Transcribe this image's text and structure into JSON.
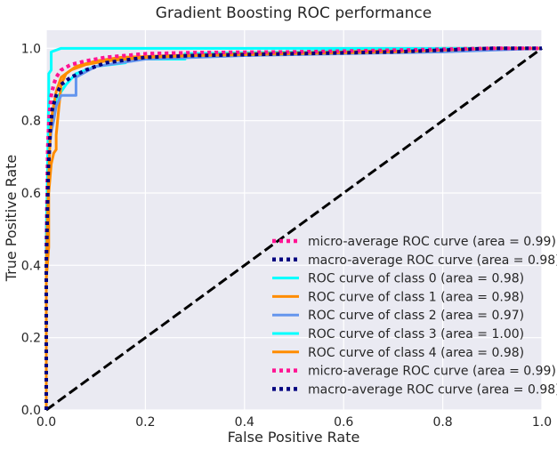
{
  "chart_data": {
    "type": "line",
    "title": "Gradient Boosting ROC performance",
    "xlabel": "False Positive Rate",
    "ylabel": "True Positive Rate",
    "xlim": [
      0.0,
      1.0
    ],
    "ylim": [
      0.0,
      1.05
    ],
    "xticks": [
      "0.0",
      "0.2",
      "0.4",
      "0.6",
      "0.8",
      "1.0"
    ],
    "yticks": [
      "0.0",
      "0.2",
      "0.4",
      "0.6",
      "0.8",
      "1.0"
    ],
    "grid": true,
    "legend_position": "lower-right",
    "background": "#eaeaf2",
    "series": [
      {
        "name": "micro-average ROC curve (area = 0.99)",
        "color": "#ff1493",
        "style": "dotted",
        "x": [
          0,
          0,
          0.003,
          0.006,
          0.01,
          0.015,
          0.02,
          0.03,
          0.05,
          0.08,
          0.12,
          0.2,
          0.3,
          0.5,
          0.7,
          0.9,
          1.0
        ],
        "y": [
          0,
          0.42,
          0.72,
          0.82,
          0.87,
          0.9,
          0.92,
          0.94,
          0.955,
          0.965,
          0.975,
          0.985,
          0.988,
          0.99,
          0.995,
          1.0,
          1.0
        ]
      },
      {
        "name": "macro-average ROC curve (area = 0.98)",
        "color": "#000080",
        "style": "dotted",
        "x": [
          0,
          0,
          0.004,
          0.008,
          0.012,
          0.02,
          0.03,
          0.05,
          0.08,
          0.12,
          0.2,
          0.3,
          0.5,
          0.7,
          0.9,
          1.0
        ],
        "y": [
          0,
          0.4,
          0.66,
          0.77,
          0.83,
          0.87,
          0.9,
          0.92,
          0.94,
          0.96,
          0.975,
          0.98,
          0.985,
          0.99,
          1.0,
          1.0
        ]
      },
      {
        "name": "ROC curve of class 0 (area = 0.98)",
        "color": "#00ffff",
        "style": "solid",
        "x": [
          0,
          0,
          0.005,
          0.01,
          0.02,
          0.04,
          0.06,
          0.1,
          0.16,
          0.16,
          0.28,
          0.28,
          0.5,
          0.8,
          1.0
        ],
        "y": [
          0,
          0.5,
          0.72,
          0.8,
          0.86,
          0.9,
          0.93,
          0.95,
          0.96,
          0.97,
          0.97,
          0.985,
          0.99,
          1.0,
          1.0
        ]
      },
      {
        "name": "ROC curve of class 1 (area = 0.98)",
        "color": "#ff8c00",
        "style": "solid",
        "x": [
          0,
          0,
          0.005,
          0.005,
          0.01,
          0.015,
          0.02,
          0.02,
          0.03,
          0.04,
          0.06,
          0.1,
          0.15,
          0.25,
          0.4,
          0.6,
          0.8,
          1.0
        ],
        "y": [
          0,
          0.36,
          0.45,
          0.6,
          0.68,
          0.71,
          0.72,
          0.76,
          0.9,
          0.93,
          0.95,
          0.965,
          0.975,
          0.98,
          0.985,
          0.99,
          1.0,
          1.0
        ]
      },
      {
        "name": "ROC curve of class 2 (area = 0.97)",
        "color": "#6495ed",
        "style": "solid",
        "x": [
          0,
          0,
          0.005,
          0.01,
          0.015,
          0.02,
          0.03,
          0.06,
          0.06,
          0.1,
          0.15,
          0.2,
          0.4,
          0.6,
          0.8,
          0.9,
          1.0
        ],
        "y": [
          0,
          0.5,
          0.7,
          0.77,
          0.8,
          0.84,
          0.87,
          0.87,
          0.92,
          0.95,
          0.96,
          0.97,
          0.98,
          0.985,
          0.99,
          0.995,
          1.0
        ]
      },
      {
        "name": "ROC curve of class 3 (area = 1.00)",
        "color": "#00ffff",
        "style": "solid",
        "x": [
          0,
          0,
          0.005,
          0.005,
          0.01,
          0.01,
          0.03,
          0.1,
          0.3,
          0.6,
          1.0
        ],
        "y": [
          0,
          0.45,
          0.88,
          0.93,
          0.94,
          0.99,
          1.0,
          1.0,
          1.0,
          1.0,
          1.0
        ]
      },
      {
        "name": "ROC curve of class 4 (area = 0.98)",
        "color": "#ff8c00",
        "style": "solid",
        "x": [
          0,
          0,
          0.005,
          0.008,
          0.012,
          0.02,
          0.03,
          0.05,
          0.08,
          0.12,
          0.2,
          0.3,
          0.5,
          0.7,
          0.9,
          1.0
        ],
        "y": [
          0,
          0.4,
          0.65,
          0.76,
          0.82,
          0.88,
          0.92,
          0.94,
          0.955,
          0.965,
          0.975,
          0.98,
          0.985,
          0.99,
          1.0,
          1.0
        ]
      },
      {
        "name": "micro-average ROC curve (area = 0.99)",
        "color": "#ff1493",
        "style": "dotted",
        "x": [
          0,
          0,
          0.003,
          0.006,
          0.01,
          0.015,
          0.02,
          0.03,
          0.05,
          0.08,
          0.12,
          0.2,
          0.3,
          0.5,
          0.7,
          0.9,
          1.0
        ],
        "y": [
          0,
          0.42,
          0.72,
          0.82,
          0.87,
          0.9,
          0.92,
          0.94,
          0.955,
          0.965,
          0.975,
          0.985,
          0.988,
          0.99,
          0.995,
          1.0,
          1.0
        ]
      },
      {
        "name": "macro-average ROC curve (area = 0.98)",
        "color": "#000080",
        "style": "dotted",
        "x": [
          0,
          0,
          0.004,
          0.008,
          0.012,
          0.02,
          0.03,
          0.05,
          0.08,
          0.12,
          0.2,
          0.3,
          0.5,
          0.7,
          0.9,
          1.0
        ],
        "y": [
          0,
          0.4,
          0.66,
          0.77,
          0.83,
          0.87,
          0.9,
          0.92,
          0.94,
          0.96,
          0.975,
          0.98,
          0.985,
          0.99,
          1.0,
          1.0
        ]
      }
    ],
    "reference_line": {
      "color": "#000000",
      "style": "dashed",
      "x": [
        0,
        1
      ],
      "y": [
        0,
        1
      ]
    }
  }
}
